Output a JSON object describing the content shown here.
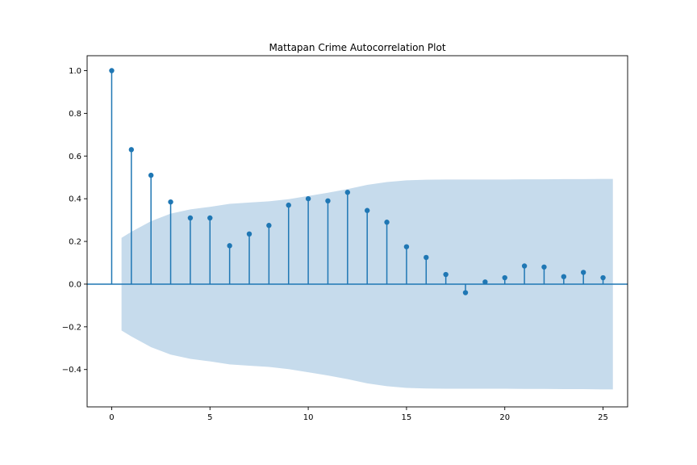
{
  "chart_data": {
    "type": "stem",
    "title": "Mattapan Crime Autocorrelation Plot",
    "xlabel": "",
    "ylabel": "",
    "xlim": [
      -1.25,
      26.25
    ],
    "ylim": [
      -0.575,
      1.07
    ],
    "xticks": [
      0,
      5,
      10,
      15,
      20,
      25
    ],
    "yticks": [
      -0.4,
      -0.2,
      0.0,
      0.2,
      0.4,
      0.6,
      0.8,
      1.0
    ],
    "ytick_labels": [
      "−0.4",
      "−0.2",
      "0.0",
      "0.2",
      "0.4",
      "0.6",
      "0.8",
      "1.0"
    ],
    "grid": false,
    "lags": [
      0,
      1,
      2,
      3,
      4,
      5,
      6,
      7,
      8,
      9,
      10,
      11,
      12,
      13,
      14,
      15,
      16,
      17,
      18,
      19,
      20,
      21,
      22,
      23,
      24,
      25
    ],
    "values": [
      1.0,
      0.63,
      0.51,
      0.385,
      0.31,
      0.31,
      0.18,
      0.235,
      0.275,
      0.37,
      0.4,
      0.39,
      0.43,
      0.345,
      0.29,
      0.175,
      0.125,
      0.045,
      -0.04,
      0.01,
      0.03,
      0.085,
      0.08,
      0.035,
      0.055,
      0.03
    ],
    "confidence_band": {
      "x": [
        0.5,
        1,
        2,
        3,
        4,
        5,
        6,
        7,
        8,
        9,
        10,
        11,
        12,
        13,
        14,
        15,
        16,
        17,
        18,
        19,
        20,
        21,
        22,
        23,
        24,
        25,
        25.5
      ],
      "upper": [
        0.217,
        0.245,
        0.295,
        0.33,
        0.35,
        0.362,
        0.376,
        0.382,
        0.388,
        0.398,
        0.413,
        0.428,
        0.445,
        0.465,
        0.478,
        0.486,
        0.489,
        0.49,
        0.49,
        0.49,
        0.49,
        0.491,
        0.491,
        0.492,
        0.492,
        0.493,
        0.493
      ]
    },
    "colors": {
      "stem": "#1f77b4",
      "band": "#c6dbec",
      "baseline": "#1f77b4"
    }
  }
}
